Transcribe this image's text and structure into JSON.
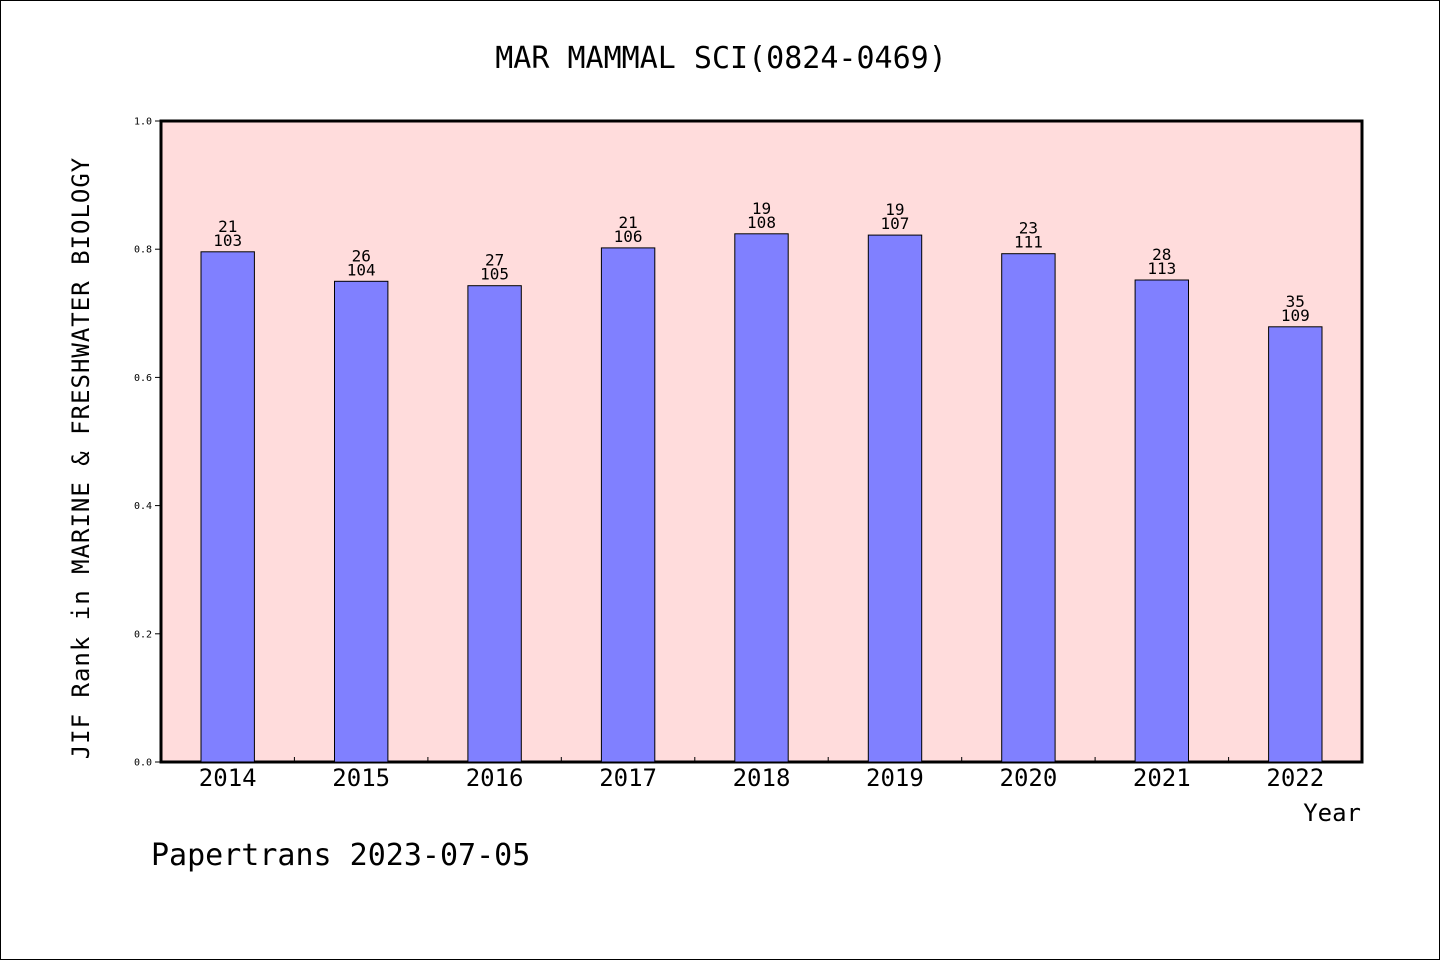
{
  "chart_data": {
    "type": "bar",
    "title": "MAR MAMMAL SCI(0824-0469)",
    "xlabel": "Year",
    "ylabel": "JIF Rank in MARINE & FRESHWATER BIOLOGY",
    "ylim": [
      0,
      1.0
    ],
    "yticks": [
      "0.0",
      "0.2",
      "0.4",
      "0.6",
      "0.8",
      "1.0"
    ],
    "grid": false,
    "categories": [
      "2014",
      "2015",
      "2016",
      "2017",
      "2018",
      "2019",
      "2020",
      "2021",
      "2022"
    ],
    "values": [
      0.796,
      0.75,
      0.743,
      0.802,
      0.824,
      0.822,
      0.793,
      0.752,
      0.679
    ],
    "rank": [
      "21",
      "26",
      "27",
      "21",
      "19",
      "19",
      "23",
      "28",
      "35"
    ],
    "total": [
      "103",
      "104",
      "105",
      "106",
      "108",
      "107",
      "111",
      "113",
      "109"
    ],
    "colors": {
      "bar_fill": "#8080ff",
      "plot_background": "#ffdcdc",
      "axis": "#000000"
    }
  },
  "footer": "Papertrans 2023-07-05"
}
